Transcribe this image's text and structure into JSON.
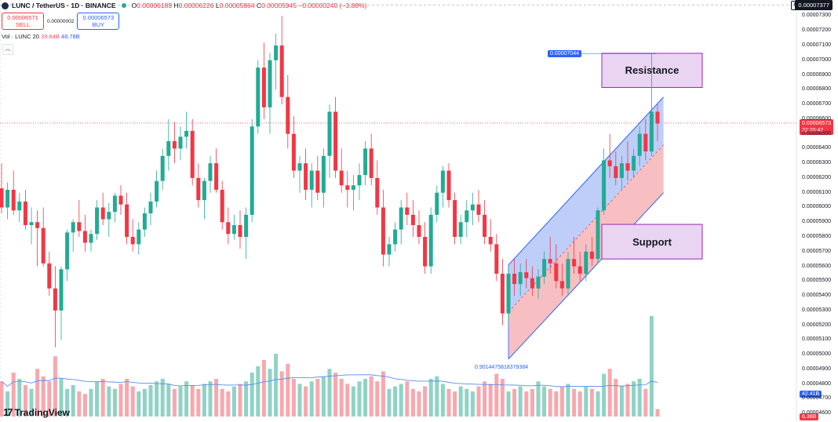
{
  "header": {
    "symbol": "LUNC / TetherUS · 1D · BINANCE",
    "ohlc": {
      "o_label": "O",
      "o": "0.00006189",
      "h_label": "H",
      "h": "0.00006226",
      "l_label": "L",
      "l": "0.00005864",
      "c_label": "C",
      "c": "0.00005945",
      "change": "−0.00000240 (−3.88%)"
    }
  },
  "trade": {
    "sell_price": "0.00006571",
    "sell_label": "SELL",
    "spread": "0.00000002",
    "buy_price": "0.00006573",
    "buy_label": "BUY"
  },
  "volume_legend": {
    "label": "Vol · LUNC 20",
    "v1": "39.84B",
    "v2": "48.78B"
  },
  "branding": {
    "logo_text": "TradingView",
    "logo_mark": "17"
  },
  "tags": {
    "top_price": "0.00007377",
    "last_price": "0.00006573",
    "countdown": "22:20:42",
    "vol_ma": "42.41B",
    "vol_last": "6.38B",
    "channel_top": "0.00007044",
    "channel_bottom_value": "0.9014475818379384"
  },
  "colors": {
    "up": "#22ab94",
    "down": "#f23645",
    "vol_up": "#8fd3c5",
    "vol_down": "#f7a8ae",
    "channel_up": "#2962ff",
    "channel_fill_top": "#a8bdf7",
    "channel_fill_bottom": "#f6a9ae",
    "zone": "#9c27b0"
  },
  "zones": [
    {
      "label": "Resistance",
      "y_top": 7.047e-05,
      "y_bottom": 6.815e-05
    },
    {
      "label": "Support",
      "y_top": 5.885e-05,
      "y_bottom": 5.65e-05
    }
  ],
  "chart_data": {
    "type": "candlestick",
    "y_axis": {
      "ylim": [
        4.58e-05,
        7.377e-05
      ],
      "ticks": [
        "0.00007300",
        "0.00007200",
        "0.00007100",
        "0.00007000",
        "0.00006900",
        "0.00006800",
        "0.00006700",
        "0.00006600",
        "0.00006500",
        "0.00006400",
        "0.00006300",
        "0.00006200",
        "0.00006100",
        "0.00006000",
        "0.00005900",
        "0.00005800",
        "0.00005700",
        "0.00005600",
        "0.00005500",
        "0.00005400",
        "0.00005300",
        "0.00005200",
        "0.00005100",
        "0.00005000",
        "0.00004900",
        "0.00004800",
        "0.00004700",
        "0.00004600"
      ]
    },
    "candles": [
      [
        6.13e-05,
        6.3e-05,
        5.96e-05,
        6e-05
      ],
      [
        6e-05,
        6.17e-05,
        5.92e-05,
        6.12e-05
      ],
      [
        6.12e-05,
        6.25e-05,
        5.95e-05,
        5.98e-05
      ],
      [
        5.98e-05,
        6.1e-05,
        5.9e-05,
        6.04e-05
      ],
      [
        6.04e-05,
        6.12e-05,
        5.85e-05,
        5.88e-05
      ],
      [
        5.88e-05,
        6e-05,
        5.75e-05,
        5.9e-05
      ],
      [
        5.9e-05,
        5.98e-05,
        5.6e-05,
        5.86e-05
      ],
      [
        5.86e-05,
        6e-05,
        5.6e-05,
        5.62e-05
      ],
      [
        5.62e-05,
        5.7e-05,
        5.4e-05,
        5.45e-05
      ],
      [
        5.45e-05,
        5.6e-05,
        5.05e-05,
        5.3e-05
      ],
      [
        5.3e-05,
        5.6e-05,
        5.1e-05,
        5.58e-05
      ],
      [
        5.58e-05,
        5.85e-05,
        5.5e-05,
        5.83e-05
      ],
      [
        5.83e-05,
        5.92e-05,
        5.7e-05,
        5.9e-05
      ],
      [
        5.9e-05,
        6.05e-05,
        5.8e-05,
        5.84e-05
      ],
      [
        5.84e-05,
        5.95e-05,
        5.7e-05,
        5.76e-05
      ],
      [
        5.76e-05,
        5.85e-05,
        5.7e-05,
        5.82e-05
      ],
      [
        5.82e-05,
        6.05e-05,
        5.78e-05,
        6e-05
      ],
      [
        6e-05,
        6.1e-05,
        5.88e-05,
        5.92e-05
      ],
      [
        5.92e-05,
        6.03e-05,
        5.8e-05,
        5.97e-05
      ],
      [
        5.97e-05,
        6.1e-05,
        5.9e-05,
        6.08e-05
      ],
      [
        6.08e-05,
        6.15e-05,
        5.95e-05,
        6.02e-05
      ],
      [
        6.02e-05,
        6.1e-05,
        5.75e-05,
        5.8e-05
      ],
      [
        5.8e-05,
        5.92e-05,
        5.7e-05,
        5.75e-05
      ],
      [
        5.75e-05,
        5.9e-05,
        5.68e-05,
        5.85e-05
      ],
      [
        5.85e-05,
        6e-05,
        5.8e-05,
        5.96e-05
      ],
      [
        5.96e-05,
        6.1e-05,
        5.88e-05,
        6.04e-05
      ],
      [
        6.04e-05,
        6.25e-05,
        6e-05,
        6.18e-05
      ],
      [
        6.18e-05,
        6.4e-05,
        6.12e-05,
        6.35e-05
      ],
      [
        6.35e-05,
        6.6e-05,
        6.25e-05,
        6.45e-05
      ],
      [
        6.45e-05,
        6.58e-05,
        6.3e-05,
        6.4e-05
      ],
      [
        6.4e-05,
        6.55e-05,
        6.32e-05,
        6.48e-05
      ],
      [
        6.48e-05,
        6.65e-05,
        6.4e-05,
        6.52e-05
      ],
      [
        6.52e-05,
        6.6e-05,
        6.15e-05,
        6.2e-05
      ],
      [
        6.2e-05,
        6.3e-05,
        6e-05,
        6.05e-05
      ],
      [
        6.05e-05,
        6.2e-05,
        5.92e-05,
        6.18e-05
      ],
      [
        6.18e-05,
        6.35e-05,
        6.1e-05,
        6.3e-05
      ],
      [
        6.3e-05,
        6.4e-05,
        6.1e-05,
        6.12e-05
      ],
      [
        6.12e-05,
        6.18e-05,
        5.85e-05,
        5.9e-05
      ],
      [
        5.9e-05,
        6e-05,
        5.75e-05,
        5.82e-05
      ],
      [
        5.82e-05,
        5.95e-05,
        5.78e-05,
        5.88e-05
      ],
      [
        5.88e-05,
        5.98e-05,
        5.72e-05,
        5.8e-05
      ],
      [
        5.8e-05,
        6e-05,
        5.65e-05,
        5.95e-05
      ],
      [
        5.95e-05,
        6.6e-05,
        5.9e-05,
        6.55e-05
      ],
      [
        6.55e-05,
        7e-05,
        6.5e-05,
        6.95e-05
      ],
      [
        6.95e-05,
        7.12e-05,
        6.6e-05,
        6.68e-05
      ],
      [
        6.68e-05,
        7.05e-05,
        6.5e-05,
        7e-05
      ],
      [
        7e-05,
        7.18e-05,
        6.8e-05,
        7.1e-05
      ],
      [
        7.1e-05,
        7.3e-05,
        6.7e-05,
        6.75e-05
      ],
      [
        6.75e-05,
        6.9e-05,
        6.4e-05,
        6.5e-05
      ],
      [
        6.5e-05,
        6.62e-05,
        6.2e-05,
        6.25e-05
      ],
      [
        6.25e-05,
        6.35e-05,
        6.1e-05,
        6.3e-05
      ],
      [
        6.3e-05,
        6.4e-05,
        6.05e-05,
        6.12e-05
      ],
      [
        6.12e-05,
        6.3e-05,
        6e-05,
        6.25e-05
      ],
      [
        6.25e-05,
        6.35e-05,
        6.05e-05,
        6.1e-05
      ],
      [
        6.1e-05,
        6.4e-05,
        6e-05,
        6.35e-05
      ],
      [
        6.35e-05,
        6.7e-05,
        6.2e-05,
        6.65e-05
      ],
      [
        6.65e-05,
        6.75e-05,
        6.2e-05,
        6.25e-05
      ],
      [
        6.25e-05,
        6.4e-05,
        6.1e-05,
        6.15e-05
      ],
      [
        6.15e-05,
        6.25e-05,
        6e-05,
        6.12e-05
      ],
      [
        6.12e-05,
        6.22e-05,
        5.98e-05,
        6.15e-05
      ],
      [
        6.15e-05,
        6.3e-05,
        6.05e-05,
        6.22e-05
      ],
      [
        6.22e-05,
        6.45e-05,
        6.15e-05,
        6.4e-05
      ],
      [
        6.4e-05,
        6.5e-05,
        6.15e-05,
        6.2e-05
      ],
      [
        6.2e-05,
        6.32e-05,
        5.95e-05,
        6e-05
      ],
      [
        6e-05,
        6.12e-05,
        5.6e-05,
        5.68e-05
      ],
      [
        5.68e-05,
        5.8e-05,
        5.6e-05,
        5.75e-05
      ],
      [
        5.75e-05,
        5.9e-05,
        5.7e-05,
        5.85e-05
      ],
      [
        5.85e-05,
        6.05e-05,
        5.75e-05,
        6e-05
      ],
      [
        6e-05,
        6.1e-05,
        5.88e-05,
        5.95e-05
      ],
      [
        5.95e-05,
        6.05e-05,
        5.8e-05,
        5.88e-05
      ],
      [
        5.88e-05,
        5.98e-05,
        5.75e-05,
        5.8e-05
      ],
      [
        5.8e-05,
        5.9e-05,
        5.55e-05,
        5.6e-05
      ],
      [
        5.6e-05,
        6e-05,
        5.55e-05,
        5.95e-05
      ],
      [
        5.95e-05,
        6.15e-05,
        5.9e-05,
        6.1e-05
      ],
      [
        6.1e-05,
        6.28e-05,
        6e-05,
        6.25e-05
      ],
      [
        6.25e-05,
        6.3e-05,
        6e-05,
        6.05e-05
      ],
      [
        6.05e-05,
        6.1e-05,
        5.75e-05,
        5.8e-05
      ],
      [
        5.8e-05,
        5.95e-05,
        5.75e-05,
        5.9e-05
      ],
      [
        5.9e-05,
        6.05e-05,
        5.8e-05,
        5.98e-05
      ],
      [
        5.98e-05,
        6.1e-05,
        5.88e-05,
        6.02e-05
      ],
      [
        6.02e-05,
        6.12e-05,
        5.9e-05,
        5.95e-05
      ],
      [
        5.95e-05,
        6.05e-05,
        5.75e-05,
        5.8e-05
      ],
      [
        5.8e-05,
        5.92e-05,
        5.7e-05,
        5.75e-05
      ],
      [
        5.75e-05,
        5.82e-05,
        5.5e-05,
        5.55e-05
      ],
      [
        5.55e-05,
        5.65e-05,
        5.2e-05,
        5.28e-05
      ],
      [
        5.28e-05,
        5.6e-05,
        5.22e-05,
        5.55e-05
      ],
      [
        5.55e-05,
        5.65e-05,
        5.4e-05,
        5.48e-05
      ],
      [
        5.48e-05,
        5.62e-05,
        5.4e-05,
        5.56e-05
      ],
      [
        5.56e-05,
        5.65e-05,
        5.45e-05,
        5.52e-05
      ],
      [
        5.52e-05,
        5.6e-05,
        5.4e-05,
        5.45e-05
      ],
      [
        5.45e-05,
        5.58e-05,
        5.38e-05,
        5.53e-05
      ],
      [
        5.53e-05,
        5.7e-05,
        5.48e-05,
        5.65e-05
      ],
      [
        5.65e-05,
        5.8e-05,
        5.55e-05,
        5.62e-05
      ],
      [
        5.62e-05,
        5.75e-05,
        5.45e-05,
        5.5e-05
      ],
      [
        5.5e-05,
        5.62e-05,
        5.4e-05,
        5.45e-05
      ],
      [
        5.45e-05,
        5.7e-05,
        5.4e-05,
        5.65e-05
      ],
      [
        5.65e-05,
        5.8e-05,
        5.55e-05,
        5.6e-05
      ],
      [
        5.6e-05,
        5.7e-05,
        5.5e-05,
        5.55e-05
      ],
      [
        5.55e-05,
        5.75e-05,
        5.5e-05,
        5.7e-05
      ],
      [
        5.7e-05,
        5.8e-05,
        5.6e-05,
        5.65e-05
      ],
      [
        5.65e-05,
        6e-05,
        5.62e-05,
        5.98e-05
      ],
      [
        5.98e-05,
        6.4e-05,
        5.95e-05,
        6.32e-05
      ],
      [
        6.32e-05,
        6.5e-05,
        6.2e-05,
        6.28e-05
      ],
      [
        6.28e-05,
        6.38e-05,
        6.15e-05,
        6.2e-05
      ],
      [
        6.2e-05,
        6.35e-05,
        6.12e-05,
        6.3e-05
      ],
      [
        6.3e-05,
        6.45e-05,
        6.18e-05,
        6.25e-05
      ],
      [
        6.25e-05,
        6.4e-05,
        6.2e-05,
        6.35e-05
      ],
      [
        6.35e-05,
        6.55e-05,
        6.28e-05,
        6.5e-05
      ],
      [
        6.5e-05,
        6.6e-05,
        6.32e-05,
        6.38e-05
      ],
      [
        6.38e-05,
        7.05e-05,
        6.35e-05,
        6.65e-05
      ],
      [
        6.65e-05,
        6.7e-05,
        6.45e-05,
        6.57e-05
      ]
    ],
    "volume": [
      28,
      20,
      35,
      30,
      25,
      22,
      38,
      32,
      28,
      48,
      30,
      22,
      25,
      20,
      18,
      22,
      28,
      30,
      24,
      22,
      26,
      30,
      24,
      20,
      22,
      25,
      28,
      30,
      26,
      22,
      24,
      28,
      25,
      22,
      26,
      28,
      30,
      22,
      20,
      24,
      26,
      28,
      35,
      40,
      45,
      38,
      50,
      36,
      42,
      30,
      26,
      24,
      28,
      30,
      32,
      38,
      35,
      30,
      26,
      24,
      28,
      30,
      32,
      28,
      36,
      22,
      24,
      26,
      28,
      22,
      20,
      24,
      30,
      32,
      26,
      22,
      20,
      24,
      22,
      20,
      24,
      28,
      26,
      34,
      30,
      20,
      22,
      24,
      20,
      22,
      28,
      24,
      22,
      20,
      24,
      26,
      22,
      20,
      24,
      22,
      20,
      34,
      38,
      30,
      24,
      26,
      28,
      30,
      22,
      80,
      6
    ],
    "vol_ma_line": true
  }
}
